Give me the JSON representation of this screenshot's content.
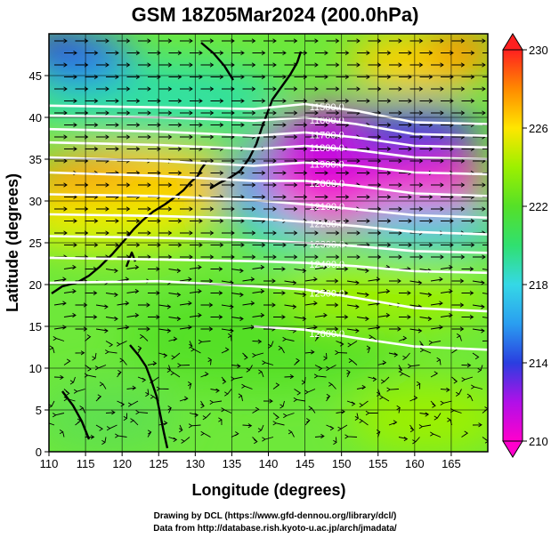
{
  "chart_data": {
    "type": "heatmap",
    "title": "GSM 18Z05Mar2024 (200.0hPa)",
    "xlabel": "Longitude (degrees)",
    "ylabel": "Latitude  (degrees)",
    "xlim": [
      110,
      170
    ],
    "ylim": [
      0,
      50
    ],
    "x_ticks": [
      110,
      115,
      120,
      125,
      130,
      135,
      140,
      145,
      150,
      155,
      160,
      165
    ],
    "y_ticks": [
      0,
      5,
      10,
      15,
      20,
      25,
      30,
      35,
      40,
      45
    ],
    "grid": true,
    "colorbar": {
      "ticks": [
        210,
        214,
        218,
        222,
        226,
        230
      ],
      "range": [
        210,
        230
      ],
      "colors": [
        "#ff00cc",
        "#2a3ee0",
        "#35d8e6",
        "#55e028",
        "#9cf000",
        "#ffe600",
        "#ff8a00",
        "#ff2020"
      ]
    },
    "height_contours": [
      {
        "label": "11500.0",
        "points": [
          [
            110,
            41.4
          ],
          [
            125,
            41.2
          ],
          [
            138,
            41.0
          ],
          [
            145,
            41.6
          ],
          [
            152,
            40.8
          ],
          [
            160,
            39.4
          ],
          [
            170,
            39.2
          ]
        ]
      },
      {
        "label": "11600.0",
        "points": [
          [
            110,
            40.2
          ],
          [
            125,
            40.0
          ],
          [
            138,
            39.6
          ],
          [
            145,
            40.0
          ],
          [
            152,
            39.2
          ],
          [
            160,
            38.0
          ],
          [
            170,
            37.8
          ]
        ]
      },
      {
        "label": "11700.0",
        "points": [
          [
            110,
            38.6
          ],
          [
            125,
            38.3
          ],
          [
            138,
            37.8
          ],
          [
            145,
            38.2
          ],
          [
            152,
            37.6
          ],
          [
            160,
            36.6
          ],
          [
            170,
            36.4
          ]
        ]
      },
      {
        "label": "11800.0",
        "points": [
          [
            110,
            37.0
          ],
          [
            125,
            36.7
          ],
          [
            138,
            36.2
          ],
          [
            145,
            36.6
          ],
          [
            152,
            36.1
          ],
          [
            160,
            35.2
          ],
          [
            170,
            35.0
          ]
        ]
      },
      {
        "label": "11900.0",
        "points": [
          [
            110,
            35.2
          ],
          [
            125,
            34.8
          ],
          [
            138,
            34.2
          ],
          [
            145,
            34.6
          ],
          [
            152,
            34.2
          ],
          [
            160,
            33.4
          ],
          [
            170,
            33.2
          ]
        ]
      },
      {
        "label": "12000.0",
        "points": [
          [
            110,
            33.4
          ],
          [
            125,
            33.0
          ],
          [
            138,
            32.4
          ],
          [
            145,
            32.4
          ],
          [
            152,
            31.8
          ],
          [
            160,
            30.9
          ],
          [
            170,
            30.6
          ]
        ]
      },
      {
        "label": "12100.0",
        "points": [
          [
            110,
            30.8
          ],
          [
            125,
            30.6
          ],
          [
            138,
            30.1
          ],
          [
            145,
            29.6
          ],
          [
            152,
            29.0
          ],
          [
            160,
            28.3
          ],
          [
            170,
            28.0
          ]
        ]
      },
      {
        "label": "12200.0",
        "points": [
          [
            110,
            28.4
          ],
          [
            125,
            28.2
          ],
          [
            138,
            27.9
          ],
          [
            145,
            27.5
          ],
          [
            152,
            27.0
          ],
          [
            160,
            26.3
          ],
          [
            170,
            26.0
          ]
        ]
      },
      {
        "label": "12300.0",
        "points": [
          [
            110,
            25.8
          ],
          [
            125,
            25.6
          ],
          [
            138,
            25.3
          ],
          [
            145,
            25.0
          ],
          [
            152,
            24.6
          ],
          [
            160,
            24.0
          ],
          [
            170,
            23.8
          ]
        ]
      },
      {
        "label": "12400.0",
        "points": [
          [
            110,
            23.2
          ],
          [
            125,
            23.0
          ],
          [
            138,
            22.8
          ],
          [
            145,
            22.6
          ],
          [
            152,
            22.2
          ],
          [
            160,
            21.6
          ],
          [
            170,
            21.4
          ]
        ]
      },
      {
        "label": "12500.0",
        "points": [
          [
            110,
            20.2
          ],
          [
            125,
            20.4
          ],
          [
            138,
            19.8
          ],
          [
            145,
            19.4
          ],
          [
            152,
            18.4
          ],
          [
            160,
            17.2
          ],
          [
            170,
            16.8
          ]
        ]
      },
      {
        "label": "12600.0",
        "points": [
          [
            138,
            15.0
          ],
          [
            145,
            14.6
          ],
          [
            152,
            13.6
          ],
          [
            160,
            12.6
          ],
          [
            170,
            12.2
          ]
        ]
      }
    ],
    "credits": [
      "Drawing by DCL (https://www.gfd-dennou.org/library/dcl/)",
      "Data from http://database.rish.kyoto-u.ac.jp/arch/jmadata/"
    ]
  }
}
